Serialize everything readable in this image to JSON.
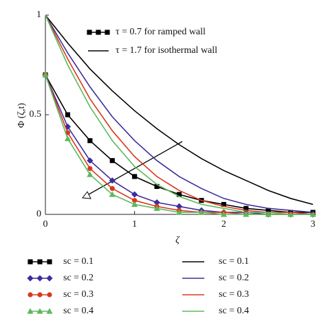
{
  "chart_data": {
    "type": "line",
    "x_label": "ζ",
    "y_label": "Φ (ζ,t)",
    "x": [
      0,
      0.25,
      0.5,
      0.75,
      1,
      1.25,
      1.5,
      1.75,
      2,
      2.25,
      2.5,
      2.75,
      3
    ],
    "xlim": [
      0,
      3
    ],
    "xticks": [
      0,
      1,
      2,
      3
    ],
    "ylim": [
      0,
      1
    ],
    "yticks": [
      0,
      0.5,
      1
    ],
    "legend_notes": [
      {
        "text": "τ = 0.7 for ramped wall",
        "marker": "square",
        "color": "#000000"
      },
      {
        "text": "τ = 1.7 for isothermal wall",
        "marker": "none",
        "color": "#000000"
      }
    ],
    "series": [
      {
        "name": "sc = 0.1",
        "color": "#000000",
        "marker": "square",
        "values": [
          0.7,
          0.5,
          0.37,
          0.27,
          0.19,
          0.14,
          0.1,
          0.07,
          0.05,
          0.03,
          0.02,
          0.01,
          0.01
        ]
      },
      {
        "name": "sc = 0.2",
        "color": "#3a2d9c",
        "marker": "diamond",
        "values": [
          0.7,
          0.44,
          0.27,
          0.17,
          0.1,
          0.06,
          0.04,
          0.02,
          0.01,
          0.01,
          0,
          0,
          0
        ]
      },
      {
        "name": "sc = 0.3",
        "color": "#d9381e",
        "marker": "circle",
        "values": [
          0.7,
          0.41,
          0.23,
          0.13,
          0.07,
          0.04,
          0.02,
          0.01,
          0.01,
          0,
          0,
          0,
          0
        ]
      },
      {
        "name": "sc = 0.4",
        "color": "#5cb85c",
        "marker": "triangle",
        "values": [
          0.7,
          0.38,
          0.2,
          0.1,
          0.05,
          0.03,
          0.01,
          0.01,
          0,
          0,
          0,
          0,
          0
        ]
      },
      {
        "name": "sc = 0.1",
        "color": "#000000",
        "marker": "none",
        "values": [
          1,
          0.86,
          0.73,
          0.62,
          0.52,
          0.43,
          0.35,
          0.28,
          0.22,
          0.17,
          0.12,
          0.08,
          0.05
        ]
      },
      {
        "name": "sc = 0.2",
        "color": "#3a2d9c",
        "marker": "none",
        "values": [
          1,
          0.81,
          0.64,
          0.49,
          0.37,
          0.27,
          0.19,
          0.13,
          0.08,
          0.05,
          0.03,
          0.02,
          0.01
        ]
      },
      {
        "name": "sc = 0.3",
        "color": "#d9381e",
        "marker": "none",
        "values": [
          1,
          0.78,
          0.58,
          0.42,
          0.29,
          0.19,
          0.12,
          0.07,
          0.04,
          0.02,
          0.01,
          0.01,
          0
        ]
      },
      {
        "name": "sc = 0.4",
        "color": "#5cb85c",
        "marker": "none",
        "values": [
          1,
          0.75,
          0.54,
          0.37,
          0.24,
          0.15,
          0.09,
          0.05,
          0.03,
          0.01,
          0.01,
          0,
          0
        ]
      }
    ]
  }
}
